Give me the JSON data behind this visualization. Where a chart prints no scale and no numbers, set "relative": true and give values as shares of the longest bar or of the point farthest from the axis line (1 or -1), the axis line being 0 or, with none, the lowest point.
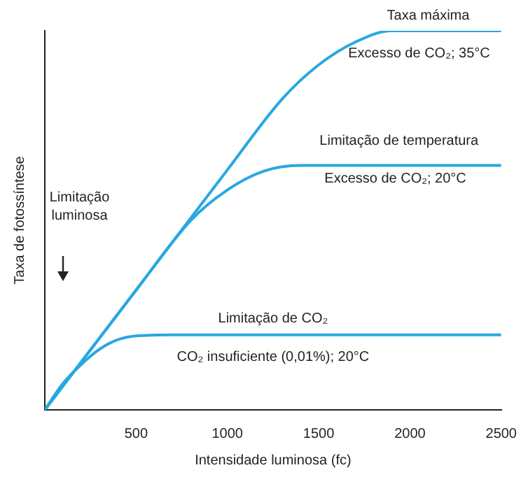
{
  "chart_data": {
    "type": "line",
    "relative": true,
    "xlabel": "Intensidade luminosa (fc)",
    "ylabel": "Taxa de fotossíntese",
    "xlim": [
      0,
      2500
    ],
    "xticks": [
      500,
      1000,
      1500,
      2000,
      2500
    ],
    "grid": false,
    "legend": false,
    "marker": "none",
    "line_style": "solid",
    "series": [
      {
        "color": "#29a8e0",
        "x": [
          0,
          500,
          1000,
          1300,
          1500,
          1700,
          1900,
          2500
        ],
        "values": [
          0,
          0.316,
          0.633,
          0.82,
          0.91,
          0.97,
          1,
          1
        ]
      },
      {
        "color": "#29a8e0",
        "x": [
          0,
          500,
          800,
          1000,
          1200,
          1400,
          2500
        ],
        "values": [
          0,
          0.316,
          0.5,
          0.58,
          0.63,
          0.645,
          0.645
        ]
      },
      {
        "color": "#29a8e0",
        "x": [
          0,
          100,
          200,
          300,
          400,
          500,
          700,
          2500
        ],
        "values": [
          0,
          0.07,
          0.12,
          0.16,
          0.185,
          0.195,
          0.198,
          0.198
        ]
      }
    ],
    "annotations": [
      "Taxa máxima",
      "Excesso de CO₂; 35°C",
      "Limitação de temperatura",
      "Excesso de CO₂; 20°C",
      "Limitação\nluminosa",
      "Limitação de CO₂",
      "CO₂ insuficiente (0,01%); 20°C"
    ]
  }
}
